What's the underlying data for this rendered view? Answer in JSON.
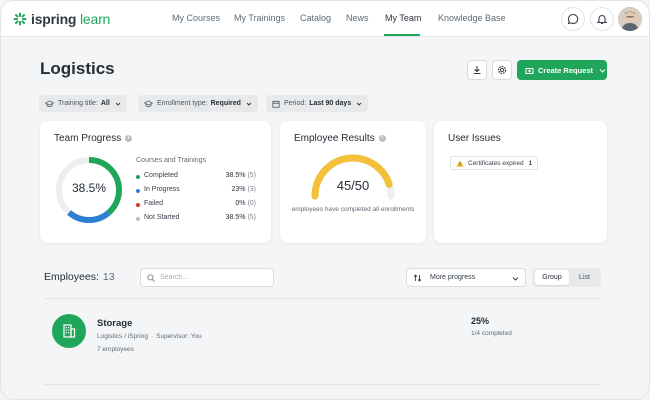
{
  "header": {
    "logo_text_main": "ispring",
    "logo_text_accent": "learn",
    "nav": [
      "My Courses",
      "My Trainings",
      "Catalog",
      "News",
      "My Team",
      "Knowledge Base"
    ],
    "active_nav": "My Team",
    "icons": [
      "chat-icon",
      "bell-icon",
      "user-avatar"
    ]
  },
  "page": {
    "title": "Logistics",
    "create_label": "Create Request"
  },
  "filters": [
    {
      "label": "Training title:",
      "value": "All"
    },
    {
      "label": "Enrollment type:",
      "value": "Required"
    },
    {
      "label": "Period:",
      "value": "Last 90 days"
    }
  ],
  "team_progress": {
    "title": "Team Progress",
    "center_label": "38.5%",
    "legend_title": "Courses and Trainings",
    "items": [
      {
        "name": "Completed",
        "pct": "38.5%",
        "count": "(5)",
        "color": "#20a65a",
        "fraction": 0.385
      },
      {
        "name": "In Progress",
        "pct": "23%",
        "count": "(3)",
        "color": "#2f7fd0",
        "fraction": 0.23
      },
      {
        "name": "Failed",
        "pct": "0%",
        "count": "(0)",
        "color": "#d9342b",
        "fraction": 0
      },
      {
        "name": "Not Started",
        "pct": "38.5%",
        "count": "(5)",
        "color": "#b8bec4",
        "fraction": 0.385
      }
    ]
  },
  "employee_results": {
    "title": "Employee Results",
    "value": "45/50",
    "fraction": 0.9,
    "caption": "employees have completed all enrollments",
    "color": "#f4bf3a"
  },
  "user_issues": {
    "title": "User Issues",
    "chip_label": "Certificates expired",
    "chip_count": "1"
  },
  "employees": {
    "title": "Employees:",
    "count": "13",
    "search_placeholder": "Search...",
    "sort_label": "More progress",
    "view_options": [
      "Group",
      "List"
    ],
    "active_view": "Group"
  },
  "team": {
    "name": "Storage",
    "path": "Logistics / iSpring",
    "supervisor": "Supervisor: You",
    "employees": "7 employees",
    "progress": "25%",
    "completed": "1/4 completed"
  },
  "colors": {
    "accent": "#20a65a",
    "text": "#262e36"
  }
}
